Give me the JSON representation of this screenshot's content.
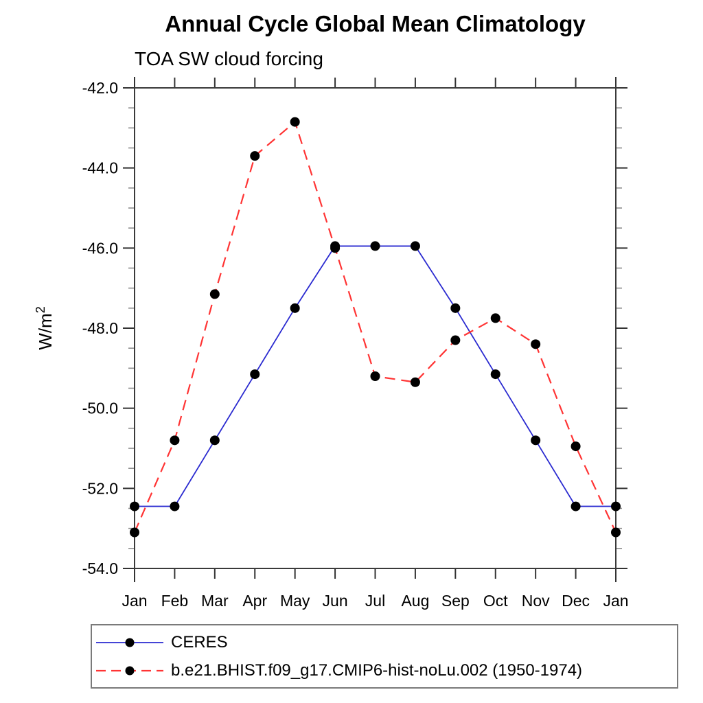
{
  "page": {
    "background": "#ffffff"
  },
  "chart": {
    "title": "Annual Cycle Global Mean Climatology",
    "subtitle": "TOA SW cloud forcing"
  },
  "chart_data": {
    "type": "line",
    "title": "Annual Cycle Global Mean Climatology",
    "subtitle": "TOA SW cloud forcing",
    "categories": [
      "Jan",
      "Feb",
      "Mar",
      "Apr",
      "May",
      "Jun",
      "Jul",
      "Aug",
      "Sep",
      "Oct",
      "Nov",
      "Dec",
      "Jan"
    ],
    "series": [
      {
        "name": "CERES",
        "color": "#2a2ad0",
        "line_style": "solid",
        "marker": "circle",
        "marker_color": "#000000",
        "values": [
          -52.45,
          -52.45,
          -50.8,
          -49.15,
          -47.5,
          -45.95,
          -45.95,
          -45.95,
          -47.5,
          -49.15,
          -50.8,
          -52.45,
          -52.45
        ]
      },
      {
        "name": "b.e21.BHIST.f09_g17.CMIP6-hist-noLu.002 (1950-1974)",
        "color": "#ff3434",
        "line_style": "dashed",
        "marker": "circle",
        "marker_color": "#000000",
        "values": [
          -53.1,
          -50.8,
          -47.15,
          -43.7,
          -42.85,
          -46.0,
          -49.2,
          -49.35,
          -48.3,
          -47.75,
          -48.4,
          -50.95,
          -53.1
        ]
      }
    ],
    "xlabel": "",
    "ylabel": "W/m²",
    "ylabel_base": "W/m",
    "ylabel_sup": "2",
    "ylim": [
      -54.0,
      -42.0
    ],
    "ytick_labels": [
      "-42.0",
      "-44.0",
      "-46.0",
      "-48.0",
      "-50.0",
      "-52.0",
      "-54.0"
    ],
    "ytick_major_step": 2.0,
    "ytick_minor_step": 0.5,
    "grid": false,
    "legend_position": "bottom-left-box"
  }
}
